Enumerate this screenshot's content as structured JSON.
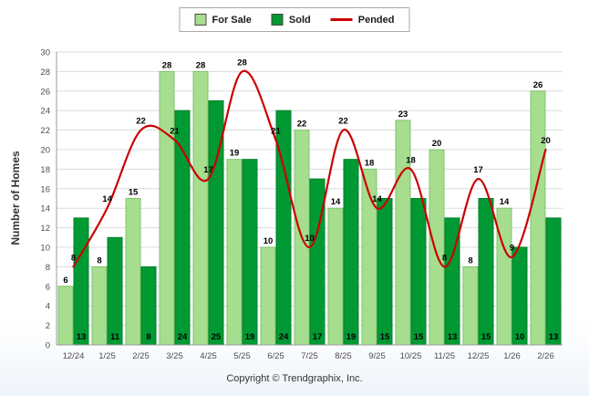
{
  "footer": "Copyright © Trendgraphix, Inc.",
  "colors": {
    "for_sale": "#A6DD8F",
    "for_sale_border": "#7FC56C",
    "sold": "#009933",
    "sold_border": "#007F2A",
    "pended": "#CC0000",
    "grid": "#DBDBDB",
    "axis": "#9A9A9A",
    "tick_text": "#4D4D4D",
    "label_text": "#000000"
  },
  "chart_data": {
    "type": "bar",
    "subtype": "grouped bars with overlaid line (Pended)",
    "ylabel": "Number of Homes",
    "ylim": [
      0,
      30
    ],
    "ytick_step": 2,
    "grid": true,
    "legend_position": "top-center",
    "categories": [
      "12/24",
      "1/25",
      "2/25",
      "3/25",
      "4/25",
      "5/25",
      "6/25",
      "7/25",
      "8/25",
      "9/25",
      "10/25",
      "11/25",
      "12/25",
      "1/26",
      "2/26"
    ],
    "series": [
      {
        "name": "For Sale",
        "type": "bar",
        "color_key": "for_sale",
        "values": [
          6,
          8,
          15,
          28,
          28,
          19,
          10,
          22,
          14,
          18,
          23,
          20,
          8,
          14,
          26
        ]
      },
      {
        "name": "Sold",
        "type": "bar",
        "color_key": "sold",
        "values": [
          13,
          11,
          8,
          24,
          25,
          19,
          24,
          17,
          19,
          15,
          15,
          13,
          15,
          10,
          13
        ]
      },
      {
        "name": "Pended",
        "type": "line",
        "color_key": "pended",
        "values": [
          8,
          14,
          22,
          21,
          17,
          28,
          21,
          10,
          22,
          14,
          18,
          8,
          17,
          9,
          20
        ]
      }
    ]
  }
}
